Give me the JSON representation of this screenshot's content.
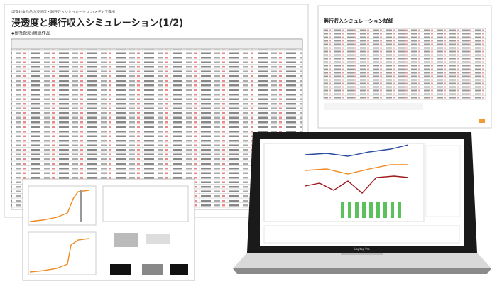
{
  "documents": [
    {
      "header": "調査対象作品の浸透度・興行収入シミュレーション/メディア露出",
      "title": "浸透度と興行収入シミュレーション(1/2)",
      "subtitle": "◆御社配給/関連作品"
    },
    {
      "title": "興行収入シミュレーション詳細"
    }
  ],
  "laptop": {
    "brand": "Laptop Pro"
  }
}
